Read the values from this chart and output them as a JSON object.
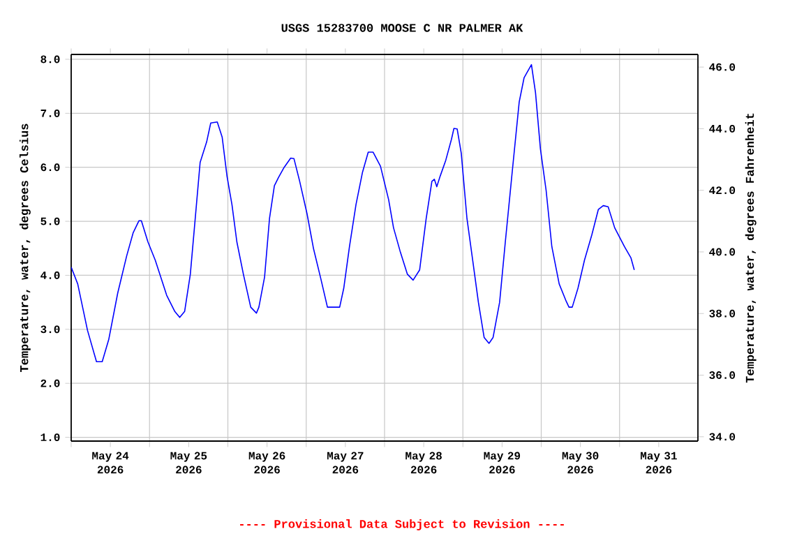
{
  "chart_data": {
    "type": "line",
    "title": "USGS 15283700 MOOSE C NR PALMER AK",
    "ylabel": "Temperature, water, degrees Celsius",
    "y2label": "Temperature, water, degrees Fahrenheit",
    "annotations": [
      "---- Provisional Data Subject to Revision ----"
    ],
    "xlim": [
      "2026-05-24T00:00",
      "2026-06-01T00:00"
    ],
    "xticks": [
      {
        "value": "2026-05-24T00:00",
        "label": null
      },
      {
        "value": "2026-05-25T00:00",
        "label": null
      },
      {
        "value": "2026-05-26T00:00",
        "label": null
      },
      {
        "value": "2026-05-27T00:00",
        "label": null
      },
      {
        "value": "2026-05-28T00:00",
        "label": null
      },
      {
        "value": "2026-05-29T00:00",
        "label": null
      },
      {
        "value": "2026-05-30T00:00",
        "label": null
      },
      {
        "value": "2026-05-31T00:00",
        "label": null
      },
      {
        "value": "2026-05-24T12:00",
        "label": "May 24 2026"
      },
      {
        "value": "2026-05-25T12:00",
        "label": "May 25 2026"
      },
      {
        "value": "2026-05-26T12:00",
        "label": "May 26 2026"
      },
      {
        "value": "2026-05-27T12:00",
        "label": "May 27 2026"
      },
      {
        "value": "2026-05-28T12:00",
        "label": "May 28 2026"
      },
      {
        "value": "2026-05-29T12:00",
        "label": "May 29 2026"
      },
      {
        "value": "2026-05-30T12:00",
        "label": "May 30 2026"
      },
      {
        "value": "2026-05-31T12:00",
        "label": "May 31 2026"
      }
    ],
    "ylim": [
      0.93,
      8.09
    ],
    "yticks": [
      {
        "value": 1,
        "label": "1.0"
      },
      {
        "value": 2,
        "label": "2.0"
      },
      {
        "value": 3,
        "label": "3.0"
      },
      {
        "value": 4,
        "label": "4.0"
      },
      {
        "value": 5,
        "label": "5.0"
      },
      {
        "value": 6,
        "label": "6.0"
      },
      {
        "value": 7,
        "label": "7.0"
      },
      {
        "value": 8,
        "label": "8.0"
      }
    ],
    "y2lim": [
      33.86,
      46.41
    ],
    "y2ticks": [
      {
        "value": 34,
        "label": "34.0"
      },
      {
        "value": 36,
        "label": "36.0"
      },
      {
        "value": 38,
        "label": "38.0"
      },
      {
        "value": 40,
        "label": "40.0"
      },
      {
        "value": 42,
        "label": "42.0"
      },
      {
        "value": 44,
        "label": "44.0"
      },
      {
        "value": 46,
        "label": "46.0"
      }
    ],
    "grid": true,
    "series": [
      {
        "color": "#0000ff",
        "x": [
          "2026-05-24T00:00",
          "2026-05-24T02:00",
          "2026-05-24T05:00",
          "2026-05-24T07:45",
          "2026-05-24T09:30",
          "2026-05-24T11:30",
          "2026-05-24T14:15",
          "2026-05-24T17:00",
          "2026-05-24T19:00",
          "2026-05-24T20:45",
          "2026-05-24T21:30",
          "2026-05-24T23:30",
          "2026-05-25T01:45",
          "2026-05-25T05:15",
          "2026-05-25T07:45",
          "2026-05-25T09:15",
          "2026-05-25T10:45",
          "2026-05-25T12:30",
          "2026-05-25T13:45",
          "2026-05-25T15:30",
          "2026-05-25T17:30",
          "2026-05-25T18:45",
          "2026-05-25T20:45",
          "2026-05-25T22:15",
          "2026-05-25T23:45",
          "2026-05-26T01:15",
          "2026-05-26T02:45",
          "2026-05-26T04:45",
          "2026-05-26T07:00",
          "2026-05-26T08:45",
          "2026-05-26T09:30",
          "2026-05-26T11:15",
          "2026-05-26T12:45",
          "2026-05-26T14:15",
          "2026-05-26T15:30",
          "2026-05-26T17:15",
          "2026-05-26T19:15",
          "2026-05-26T20:15",
          "2026-05-26T22:00",
          "2026-05-27T00:15",
          "2026-05-27T02:15",
          "2026-05-27T04:30",
          "2026-05-27T06:30",
          "2026-05-27T10:15",
          "2026-05-27T11:30",
          "2026-05-27T13:15",
          "2026-05-27T15:15",
          "2026-05-27T17:15",
          "2026-05-27T19:00",
          "2026-05-27T20:30",
          "2026-05-27T22:45",
          "2026-05-28T01:15",
          "2026-05-28T02:45",
          "2026-05-28T04:45",
          "2026-05-28T07:00",
          "2026-05-28T08:45",
          "2026-05-28T10:45",
          "2026-05-28T12:45",
          "2026-05-28T14:30",
          "2026-05-28T15:15",
          "2026-05-28T16:00",
          "2026-05-28T17:00",
          "2026-05-28T18:45",
          "2026-05-28T20:30",
          "2026-05-28T21:15",
          "2026-05-28T22:15",
          "2026-05-28T23:30",
          "2026-05-29T01:15",
          "2026-05-29T03:00",
          "2026-05-29T04:45",
          "2026-05-29T06:30",
          "2026-05-29T08:00",
          "2026-05-29T09:15",
          "2026-05-29T11:15",
          "2026-05-29T13:00",
          "2026-05-29T15:15",
          "2026-05-29T17:15",
          "2026-05-29T18:45",
          "2026-05-29T21:00",
          "2026-05-29T22:15",
          "2026-05-29T23:45",
          "2026-05-30T01:30",
          "2026-05-30T03:15",
          "2026-05-30T05:30",
          "2026-05-30T07:30",
          "2026-05-30T08:30",
          "2026-05-30T09:30",
          "2026-05-30T11:15",
          "2026-05-30T13:15",
          "2026-05-30T15:30",
          "2026-05-30T17:30",
          "2026-05-30T19:00",
          "2026-05-30T20:30",
          "2026-05-30T22:30",
          "2026-05-31T01:30",
          "2026-05-31T03:30",
          "2026-05-31T04:30"
        ],
        "values": [
          4.15,
          3.84,
          2.98,
          2.4,
          2.4,
          2.81,
          3.67,
          4.36,
          4.79,
          5.01,
          5.01,
          4.62,
          4.28,
          3.63,
          3.33,
          3.22,
          3.33,
          4.02,
          4.88,
          6.09,
          6.47,
          6.82,
          6.84,
          6.56,
          5.83,
          5.31,
          4.62,
          4.02,
          3.41,
          3.3,
          3.41,
          3.97,
          5.05,
          5.66,
          5.81,
          6.0,
          6.17,
          6.16,
          5.74,
          5.14,
          4.49,
          3.93,
          3.41,
          3.41,
          3.76,
          4.53,
          5.31,
          5.91,
          6.28,
          6.28,
          6.02,
          5.4,
          4.88,
          4.45,
          4.02,
          3.91,
          4.1,
          5.05,
          5.74,
          5.78,
          5.64,
          5.83,
          6.13,
          6.52,
          6.72,
          6.71,
          6.26,
          5.05,
          4.28,
          3.5,
          2.85,
          2.74,
          2.85,
          3.5,
          4.62,
          6.0,
          7.21,
          7.66,
          7.9,
          7.38,
          6.34,
          5.57,
          4.53,
          3.84,
          3.54,
          3.41,
          3.41,
          3.76,
          4.28,
          4.75,
          5.22,
          5.29,
          5.27,
          4.88,
          4.53,
          4.32,
          4.1
        ]
      }
    ]
  }
}
